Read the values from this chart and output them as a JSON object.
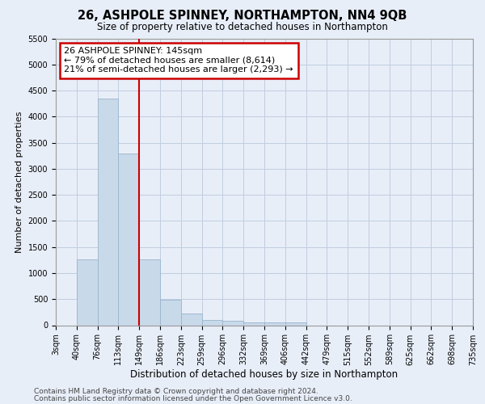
{
  "title": "26, ASHPOLE SPINNEY, NORTHAMPTON, NN4 9QB",
  "subtitle": "Size of property relative to detached houses in Northampton",
  "xlabel": "Distribution of detached houses by size in Northampton",
  "ylabel": "Number of detached properties",
  "bin_labels": [
    "3sqm",
    "40sqm",
    "76sqm",
    "113sqm",
    "149sqm",
    "186sqm",
    "223sqm",
    "259sqm",
    "296sqm",
    "332sqm",
    "369sqm",
    "406sqm",
    "442sqm",
    "479sqm",
    "515sqm",
    "552sqm",
    "589sqm",
    "625sqm",
    "662sqm",
    "698sqm",
    "735sqm"
  ],
  "bar_heights": [
    0,
    1270,
    4350,
    3300,
    1270,
    490,
    220,
    100,
    80,
    60,
    50,
    50,
    0,
    0,
    0,
    0,
    0,
    0,
    0,
    0
  ],
  "bar_color": "#c8d9ea",
  "bar_edgecolor": "#9ab4cc",
  "grid_color": "#c0cce0",
  "background_color": "#e8eef8",
  "red_line_x": 4,
  "annotation_text": "26 ASHPOLE SPINNEY: 145sqm\n← 79% of detached houses are smaller (8,614)\n21% of semi-detached houses are larger (2,293) →",
  "annotation_box_facecolor": "#ffffff",
  "annotation_border_color": "#cc0000",
  "ylim": [
    0,
    5500
  ],
  "yticks": [
    0,
    500,
    1000,
    1500,
    2000,
    2500,
    3000,
    3500,
    4000,
    4500,
    5000,
    5500
  ],
  "footer1": "Contains HM Land Registry data © Crown copyright and database right 2024.",
  "footer2": "Contains public sector information licensed under the Open Government Licence v3.0.",
  "title_fontsize": 10.5,
  "subtitle_fontsize": 8.5,
  "xlabel_fontsize": 8.5,
  "ylabel_fontsize": 8,
  "tick_fontsize": 7,
  "annotation_fontsize": 8,
  "footer_fontsize": 6.5
}
